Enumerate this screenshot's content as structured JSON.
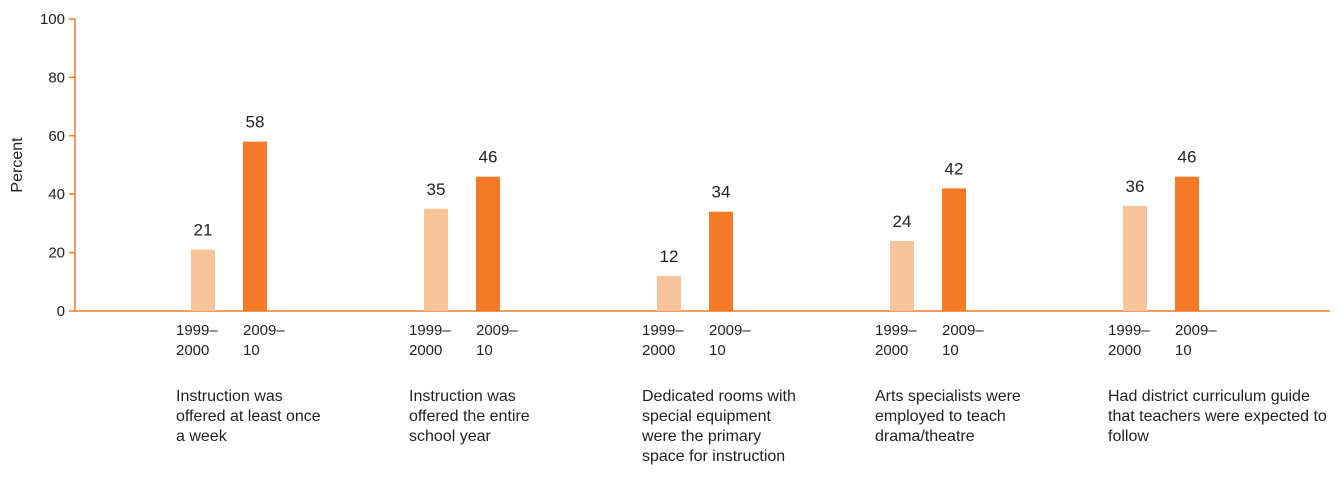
{
  "chart_data": {
    "type": "bar",
    "y_label": "Percent",
    "categories": [
      "Instruction was offered at least once a week",
      "Instruction was offered the entire school year",
      "Dedicated rooms with special equipment were the primary space for instruction",
      "Arts specialists were employed to teach drama/theatre",
      "Had district curriculum guide that teachers were expected to follow"
    ],
    "series": [
      {
        "name": "1999–2000",
        "color": "#f9c49a",
        "values": [
          21,
          35,
          12,
          24,
          36
        ]
      },
      {
        "name": "2009–10",
        "color": "#f47a27",
        "values": [
          58,
          46,
          34,
          42,
          46
        ]
      }
    ],
    "axis_color": "#f47a27",
    "ylim": [
      0,
      100
    ],
    "yticks": [
      0,
      20,
      40,
      60,
      80,
      100
    ]
  }
}
